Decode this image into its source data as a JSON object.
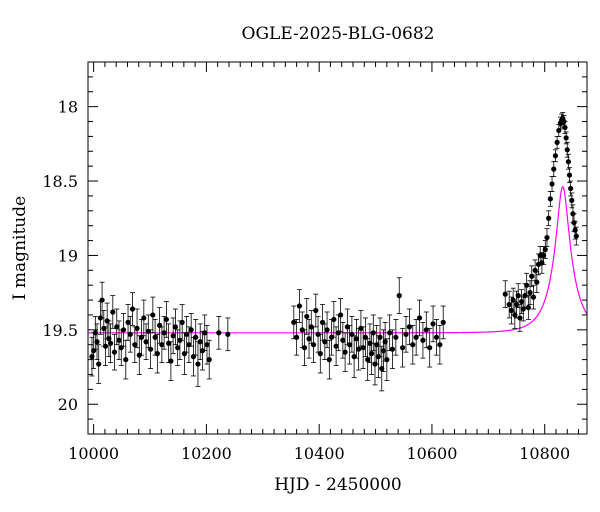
{
  "chart_data": {
    "type": "scatter",
    "title": "OGLE-2025-BLG-0682",
    "xlabel": "HJD - 2450000",
    "ylabel": "I magnitude",
    "xlim": [
      9990,
      10875
    ],
    "ylim": [
      20.2,
      17.7
    ],
    "y_inverted": true,
    "x_ticks": [
      10000,
      10200,
      10400,
      10600,
      10800
    ],
    "y_ticks": [
      18,
      18.5,
      19,
      19.5,
      20
    ],
    "x_tick_labels": [
      "10000",
      "10200",
      "10400",
      "10600",
      "10800"
    ],
    "y_tick_labels": [
      "18",
      "18.5",
      "19",
      "19.5",
      "20"
    ],
    "grid": false,
    "model": {
      "name": "",
      "color": "#ff00ff",
      "baseline_mag": 19.52,
      "t0": 10832,
      "u0": 0.26,
      "tE": 38,
      "blend_fraction": 0.5
    },
    "points": [
      [
        9997,
        19.68,
        0.13
      ],
      [
        10000,
        19.64,
        0.12
      ],
      [
        10003,
        19.52,
        0.11
      ],
      [
        10006,
        19.58,
        0.12
      ],
      [
        10009,
        19.73,
        0.13
      ],
      [
        10012,
        19.42,
        0.11
      ],
      [
        10015,
        19.3,
        0.12
      ],
      [
        10018,
        19.49,
        0.12
      ],
      [
        10021,
        19.61,
        0.13
      ],
      [
        10024,
        19.44,
        0.12
      ],
      [
        10027,
        19.56,
        0.12
      ],
      [
        10030,
        19.59,
        0.13
      ],
      [
        10034,
        19.38,
        0.11
      ],
      [
        10037,
        19.65,
        0.12
      ],
      [
        10041,
        19.48,
        0.12
      ],
      [
        10045,
        19.57,
        0.13
      ],
      [
        10049,
        19.62,
        0.12
      ],
      [
        10053,
        19.5,
        0.11
      ],
      [
        10057,
        19.7,
        0.13
      ],
      [
        10061,
        19.45,
        0.12
      ],
      [
        10065,
        19.53,
        0.12
      ],
      [
        10069,
        19.36,
        0.11
      ],
      [
        10073,
        19.6,
        0.12
      ],
      [
        10077,
        19.49,
        0.13
      ],
      [
        10081,
        19.67,
        0.13
      ],
      [
        10085,
        19.55,
        0.12
      ],
      [
        10089,
        19.42,
        0.12
      ],
      [
        10093,
        19.58,
        0.12
      ],
      [
        10097,
        19.51,
        0.11
      ],
      [
        10101,
        19.63,
        0.13
      ],
      [
        10105,
        19.4,
        0.12
      ],
      [
        10109,
        19.55,
        0.12
      ],
      [
        10113,
        19.66,
        0.13
      ],
      [
        10117,
        19.47,
        0.12
      ],
      [
        10121,
        19.6,
        0.12
      ],
      [
        10125,
        19.52,
        0.11
      ],
      [
        10129,
        19.43,
        0.12
      ],
      [
        10133,
        19.59,
        0.13
      ],
      [
        10137,
        19.71,
        0.13
      ],
      [
        10141,
        19.54,
        0.12
      ],
      [
        10145,
        19.48,
        0.12
      ],
      [
        10149,
        19.62,
        0.12
      ],
      [
        10153,
        19.57,
        0.13
      ],
      [
        10157,
        19.45,
        0.12
      ],
      [
        10161,
        19.66,
        0.14
      ],
      [
        10165,
        19.53,
        0.12
      ],
      [
        10169,
        19.6,
        0.12
      ],
      [
        10173,
        19.5,
        0.11
      ],
      [
        10177,
        19.68,
        0.13
      ],
      [
        10181,
        19.55,
        0.12
      ],
      [
        10185,
        19.73,
        0.15
      ],
      [
        10189,
        19.58,
        0.12
      ],
      [
        10193,
        19.64,
        0.13
      ],
      [
        10197,
        19.52,
        0.12
      ],
      [
        10201,
        19.6,
        0.13
      ],
      [
        10205,
        19.7,
        0.13
      ],
      [
        10222,
        19.52,
        0.11
      ],
      [
        10238,
        19.53,
        0.11
      ],
      [
        10355,
        19.45,
        0.11
      ],
      [
        10360,
        19.55,
        0.12
      ],
      [
        10365,
        19.34,
        0.11
      ],
      [
        10370,
        19.5,
        0.12
      ],
      [
        10374,
        19.62,
        0.12
      ],
      [
        10378,
        19.41,
        0.12
      ],
      [
        10382,
        19.56,
        0.13
      ],
      [
        10386,
        19.48,
        0.11
      ],
      [
        10390,
        19.6,
        0.12
      ],
      [
        10394,
        19.37,
        0.11
      ],
      [
        10398,
        19.53,
        0.12
      ],
      [
        10402,
        19.66,
        0.13
      ],
      [
        10406,
        19.45,
        0.12
      ],
      [
        10410,
        19.58,
        0.12
      ],
      [
        10414,
        19.5,
        0.12
      ],
      [
        10418,
        19.7,
        0.13
      ],
      [
        10422,
        19.55,
        0.12
      ],
      [
        10426,
        19.43,
        0.12
      ],
      [
        10430,
        19.61,
        0.13
      ],
      [
        10434,
        19.52,
        0.12
      ],
      [
        10438,
        19.4,
        0.11
      ],
      [
        10442,
        19.57,
        0.12
      ],
      [
        10446,
        19.65,
        0.13
      ],
      [
        10450,
        19.48,
        0.12
      ],
      [
        10454,
        19.6,
        0.13
      ],
      [
        10458,
        19.53,
        0.12
      ],
      [
        10462,
        19.68,
        0.14
      ],
      [
        10466,
        19.56,
        0.13
      ],
      [
        10470,
        19.63,
        0.14
      ],
      [
        10474,
        19.49,
        0.12
      ],
      [
        10478,
        19.62,
        0.14
      ],
      [
        10482,
        19.55,
        0.13
      ],
      [
        10486,
        19.7,
        0.14
      ],
      [
        10490,
        19.59,
        0.13
      ],
      [
        10493,
        19.66,
        0.14
      ],
      [
        10496,
        19.52,
        0.12
      ],
      [
        10499,
        19.73,
        0.14
      ],
      [
        10502,
        19.6,
        0.13
      ],
      [
        10505,
        19.68,
        0.14
      ],
      [
        10508,
        19.55,
        0.13
      ],
      [
        10511,
        19.76,
        0.15
      ],
      [
        10514,
        19.64,
        0.14
      ],
      [
        10517,
        19.58,
        0.13
      ],
      [
        10520,
        19.7,
        0.14
      ],
      [
        10525,
        19.52,
        0.12
      ],
      [
        10530,
        19.63,
        0.13
      ],
      [
        10536,
        19.55,
        0.12
      ],
      [
        10542,
        19.27,
        0.12
      ],
      [
        10548,
        19.62,
        0.13
      ],
      [
        10554,
        19.53,
        0.12
      ],
      [
        10560,
        19.48,
        0.12
      ],
      [
        10566,
        19.6,
        0.13
      ],
      [
        10572,
        19.55,
        0.12
      ],
      [
        10578,
        19.42,
        0.12
      ],
      [
        10584,
        19.57,
        0.12
      ],
      [
        10590,
        19.5,
        0.12
      ],
      [
        10596,
        19.62,
        0.13
      ],
      [
        10602,
        19.46,
        0.12
      ],
      [
        10608,
        19.55,
        0.12
      ],
      [
        10614,
        19.6,
        0.13
      ],
      [
        10620,
        19.45,
        0.11
      ],
      [
        10730,
        19.26,
        0.09
      ],
      [
        10737,
        19.33,
        0.09
      ],
      [
        10741,
        19.37,
        0.09
      ],
      [
        10744,
        19.3,
        0.08
      ],
      [
        10747,
        19.4,
        0.09
      ],
      [
        10750,
        19.33,
        0.09
      ],
      [
        10753,
        19.27,
        0.08
      ],
      [
        10756,
        19.42,
        0.09
      ],
      [
        10759,
        19.31,
        0.08
      ],
      [
        10762,
        19.36,
        0.08
      ],
      [
        10765,
        19.27,
        0.08
      ],
      [
        10768,
        19.2,
        0.08
      ],
      [
        10771,
        19.35,
        0.08
      ],
      [
        10774,
        19.25,
        0.08
      ],
      [
        10777,
        19.14,
        0.07
      ],
      [
        10780,
        19.28,
        0.08
      ],
      [
        10783,
        19.1,
        0.07
      ],
      [
        10786,
        19.18,
        0.07
      ],
      [
        10789,
        19.06,
        0.07
      ],
      [
        10792,
        19.0,
        0.06
      ],
      [
        10795,
        19.05,
        0.07
      ],
      [
        10798,
        19.0,
        0.06
      ],
      [
        10801,
        18.96,
        0.06
      ],
      [
        10804,
        18.88,
        0.06
      ],
      [
        10807,
        18.75,
        0.05
      ],
      [
        10810,
        18.62,
        0.05
      ],
      [
        10813,
        18.52,
        0.05
      ],
      [
        10816,
        18.42,
        0.05
      ],
      [
        10819,
        18.33,
        0.04
      ],
      [
        10822,
        18.24,
        0.04
      ],
      [
        10825,
        18.16,
        0.04
      ],
      [
        10828,
        18.11,
        0.04
      ],
      [
        10830,
        18.09,
        0.04
      ],
      [
        10832,
        18.08,
        0.04
      ],
      [
        10834,
        18.1,
        0.04
      ],
      [
        10836,
        18.14,
        0.04
      ],
      [
        10838,
        18.21,
        0.04
      ],
      [
        10840,
        18.29,
        0.05
      ],
      [
        10842,
        18.37,
        0.05
      ],
      [
        10844,
        18.46,
        0.05
      ],
      [
        10846,
        18.55,
        0.05
      ],
      [
        10848,
        18.63,
        0.05
      ],
      [
        10850,
        18.72,
        0.06
      ],
      [
        10852,
        18.78,
        0.06
      ],
      [
        10854,
        18.83,
        0.06
      ],
      [
        10856,
        18.87,
        0.06
      ]
    ]
  }
}
